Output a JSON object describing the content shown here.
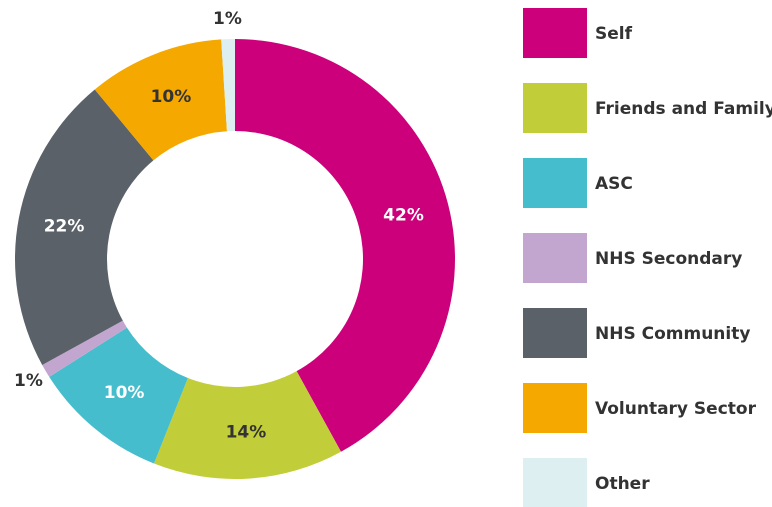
{
  "chart_data": {
    "type": "donut",
    "categories": [
      "Self",
      "Friends and Family",
      "ASC",
      "NHS Secondary",
      "NHS Community",
      "Voluntary Sector",
      "Other"
    ],
    "values": [
      42,
      14,
      10,
      1,
      22,
      10,
      1
    ],
    "value_labels": [
      "42%",
      "14%",
      "10%",
      "1%",
      "22%",
      "10%",
      "1%"
    ],
    "colors": [
      "#cc007a",
      "#c2cd3a",
      "#45bdcc",
      "#c3a6d0",
      "#5a6169",
      "#f5a800",
      "#ddeff0"
    ],
    "legend": "right"
  }
}
